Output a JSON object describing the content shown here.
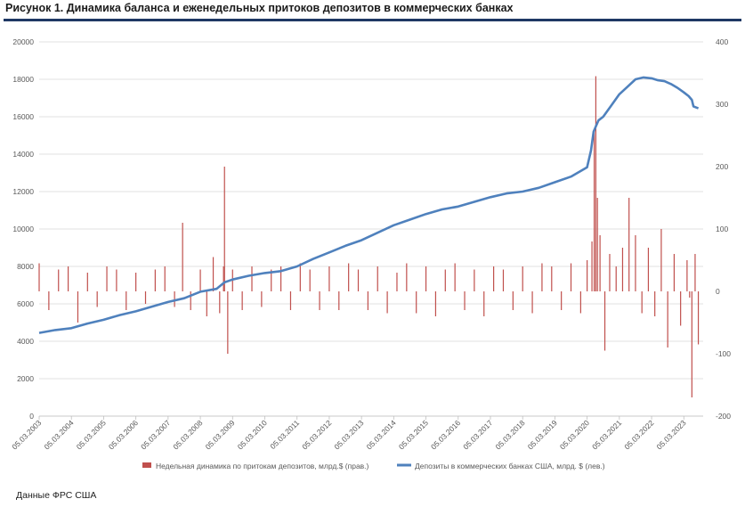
{
  "title": "Рисунок 1. Динамика баланса и еженедельных притоков депозитов в коммерческих банках",
  "source": "Данные ФРС США",
  "colors": {
    "inflow": "#c0504d",
    "deposits": "#4f81bd",
    "grid": "#d9d9d9",
    "title_rule": "#1f3864"
  },
  "chart_data": {
    "type": "line+bar",
    "title": "Рисунок 1. Динамика баланса и еженедельных притоков депозитов в коммерческих банках",
    "x_tick_labels": [
      "05.03.2003",
      "05.03.2004",
      "05.03.2005",
      "05.03.2006",
      "05.03.2007",
      "05.03.2008",
      "05.03.2009",
      "05.03.2010",
      "05.03.2011",
      "05.03.2012",
      "05.03.2013",
      "05.03.2014",
      "05.03.2015",
      "05.03.2016",
      "05.03.2017",
      "05.03.2018",
      "05.03.2019",
      "05.03.2020",
      "05.03.2021",
      "05.03.2022",
      "05.03.2023"
    ],
    "xlim": [
      2003.0,
      2023.6
    ],
    "y_left": {
      "ylim": [
        0,
        20000
      ],
      "ticks": [
        0,
        2000,
        4000,
        6000,
        8000,
        10000,
        12000,
        14000,
        16000,
        18000,
        20000
      ]
    },
    "y_right": {
      "ylim": [
        -200,
        400
      ],
      "ticks": [
        -200,
        -100,
        0,
        100,
        200,
        300,
        400
      ]
    },
    "legend_placement": "bottom",
    "series": [
      {
        "name": "Недельная динамика по притокам депозитов, млрд.$ (прав.)",
        "axis": "right",
        "kind": "bar",
        "approx": true,
        "x": [
          2003.0,
          2003.3,
          2003.6,
          2003.9,
          2004.2,
          2004.5,
          2004.8,
          2005.1,
          2005.4,
          2005.7,
          2006.0,
          2006.3,
          2006.6,
          2006.9,
          2007.2,
          2007.45,
          2007.7,
          2008.0,
          2008.2,
          2008.4,
          2008.6,
          2008.72,
          2008.75,
          2008.85,
          2009.0,
          2009.3,
          2009.6,
          2009.9,
          2010.2,
          2010.5,
          2010.8,
          2011.1,
          2011.4,
          2011.7,
          2012.0,
          2012.3,
          2012.6,
          2012.9,
          2013.2,
          2013.5,
          2013.8,
          2014.1,
          2014.4,
          2014.7,
          2015.0,
          2015.3,
          2015.6,
          2015.9,
          2016.2,
          2016.5,
          2016.8,
          2017.1,
          2017.4,
          2017.7,
          2018.0,
          2018.3,
          2018.6,
          2018.9,
          2019.2,
          2019.5,
          2019.8,
          2020.0,
          2020.15,
          2020.22,
          2020.27,
          2020.32,
          2020.4,
          2020.55,
          2020.7,
          2020.9,
          2021.1,
          2021.3,
          2021.5,
          2021.7,
          2021.9,
          2022.1,
          2022.3,
          2022.5,
          2022.7,
          2022.9,
          2023.1,
          2023.18,
          2023.25,
          2023.35,
          2023.45
        ],
        "values": [
          45,
          -30,
          35,
          40,
          -50,
          30,
          -25,
          40,
          35,
          -30,
          30,
          -20,
          35,
          40,
          -25,
          110,
          -30,
          35,
          -40,
          55,
          -35,
          40,
          200,
          -100,
          35,
          -30,
          40,
          -25,
          35,
          40,
          -30,
          45,
          35,
          -30,
          40,
          -30,
          45,
          35,
          -30,
          40,
          -35,
          30,
          45,
          -35,
          40,
          -40,
          35,
          45,
          -30,
          35,
          -40,
          40,
          35,
          -30,
          40,
          -35,
          45,
          40,
          -30,
          45,
          -35,
          50,
          80,
          260,
          345,
          150,
          90,
          -95,
          60,
          40,
          70,
          150,
          90,
          -35,
          70,
          -40,
          100,
          -90,
          60,
          -55,
          50,
          -10,
          -170,
          60,
          -85
        ]
      },
      {
        "name": "Депозиты в коммерческих банках США, млрд. $ (лев.)",
        "axis": "left",
        "kind": "line",
        "x": [
          2003.0,
          2003.5,
          2004.0,
          2004.5,
          2005.0,
          2005.5,
          2006.0,
          2006.5,
          2007.0,
          2007.5,
          2008.0,
          2008.5,
          2008.75,
          2009.0,
          2009.5,
          2010.0,
          2010.5,
          2011.0,
          2011.5,
          2012.0,
          2012.5,
          2013.0,
          2013.5,
          2014.0,
          2014.5,
          2015.0,
          2015.5,
          2016.0,
          2016.5,
          2017.0,
          2017.5,
          2018.0,
          2018.5,
          2019.0,
          2019.5,
          2020.0,
          2020.12,
          2020.2,
          2020.35,
          2020.5,
          2020.75,
          2021.0,
          2021.25,
          2021.5,
          2021.75,
          2022.0,
          2022.2,
          2022.4,
          2022.6,
          2022.8,
          2023.0,
          2023.15,
          2023.25,
          2023.3,
          2023.45
        ],
        "values": [
          4450,
          4600,
          4700,
          4950,
          5150,
          5400,
          5600,
          5850,
          6100,
          6300,
          6650,
          6800,
          7150,
          7300,
          7500,
          7650,
          7750,
          8000,
          8400,
          8750,
          9100,
          9400,
          9800,
          10200,
          10500,
          10800,
          11050,
          11200,
          11450,
          11700,
          11900,
          12000,
          12200,
          12500,
          12800,
          13300,
          14200,
          15200,
          15800,
          16000,
          16600,
          17200,
          17600,
          18000,
          18100,
          18050,
          17950,
          17900,
          17750,
          17550,
          17300,
          17100,
          16900,
          16550,
          16450
        ]
      }
    ]
  },
  "legend": {
    "inflow_label": "Недельная динамика по притокам депозитов, млрд.$ (прав.)",
    "deposits_label": "Депозиты в коммерческих банках США, млрд. $ (лев.)"
  }
}
